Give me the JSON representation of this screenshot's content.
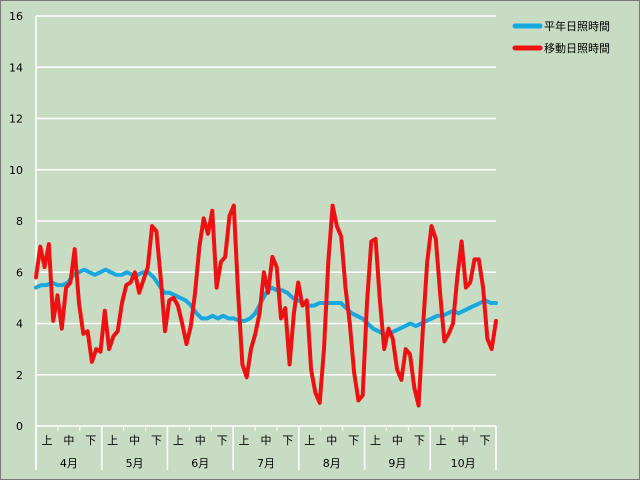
{
  "chart_data": {
    "type": "line",
    "title": "",
    "xlabel": "",
    "ylabel": "",
    "ylim": [
      0,
      16
    ],
    "yticks": [
      0,
      2,
      4,
      6,
      8,
      10,
      12,
      14,
      16
    ],
    "grid": true,
    "legend_position": "top-right",
    "months": [
      "4月",
      "5月",
      "6月",
      "7月",
      "8月",
      "9月",
      "10月"
    ],
    "periods": [
      "上",
      "中",
      "下"
    ],
    "series": [
      {
        "name": "平年日照時間",
        "color": "#18a8e0",
        "values": [
          5.4,
          5.5,
          5.5,
          5.6,
          5.5,
          5.5,
          5.6,
          5.9,
          6.0,
          6.1,
          6.0,
          5.9,
          6.0,
          6.1,
          6.0,
          5.9,
          5.9,
          6.0,
          5.9,
          5.9,
          6.0,
          6.0,
          5.8,
          5.5,
          5.2,
          5.2,
          5.1,
          5.0,
          4.9,
          4.7,
          4.4,
          4.2,
          4.2,
          4.3,
          4.2,
          4.3,
          4.2,
          4.2,
          4.1,
          4.1,
          4.2,
          4.4,
          4.8,
          5.2,
          5.4,
          5.3,
          5.3,
          5.2,
          5.0,
          4.9,
          4.8,
          4.7,
          4.7,
          4.8,
          4.8,
          4.8,
          4.8,
          4.8,
          4.6,
          4.4,
          4.3,
          4.2,
          4.0,
          3.8,
          3.7,
          3.6,
          3.6,
          3.7,
          3.8,
          3.9,
          4.0,
          3.9,
          4.0,
          4.1,
          4.2,
          4.3,
          4.3,
          4.4,
          4.5,
          4.4,
          4.5,
          4.6,
          4.7,
          4.8,
          4.9,
          4.8,
          4.8
        ]
      },
      {
        "name": "移動日照時間",
        "color": "#ee1111",
        "values": [
          5.8,
          7.0,
          6.2,
          7.1,
          4.1,
          5.1,
          3.8,
          5.4,
          5.6,
          6.9,
          4.8,
          3.6,
          3.7,
          2.5,
          3.0,
          2.9,
          4.5,
          3.0,
          3.5,
          3.7,
          4.8,
          5.5,
          5.6,
          6.0,
          5.2,
          5.7,
          6.2,
          7.8,
          7.6,
          5.8,
          3.7,
          4.9,
          5.0,
          4.7,
          4.0,
          3.2,
          3.9,
          5.2,
          7.0,
          8.1,
          7.5,
          8.4,
          5.4,
          6.4,
          6.6,
          8.2,
          8.6,
          5.2,
          2.4,
          1.9,
          3.0,
          3.6,
          4.4,
          6.0,
          5.2,
          6.6,
          6.2,
          4.2,
          4.6,
          2.4,
          4.4,
          5.6,
          4.7,
          4.9,
          2.2,
          1.3,
          0.9,
          3.0,
          6.4,
          8.6,
          7.8,
          7.4,
          5.4,
          4.0,
          2.1,
          1.0,
          1.2,
          4.8,
          7.2,
          7.3,
          4.9,
          3.0,
          3.8,
          3.4,
          2.2,
          1.8,
          3.0,
          2.8,
          1.5,
          0.8,
          3.8,
          6.4,
          7.8,
          7.3,
          5.2,
          3.3,
          3.6,
          4.0,
          5.8,
          7.2,
          5.4,
          5.6,
          6.5,
          6.5,
          5.4,
          3.4,
          3.0,
          4.1
        ]
      }
    ]
  }
}
